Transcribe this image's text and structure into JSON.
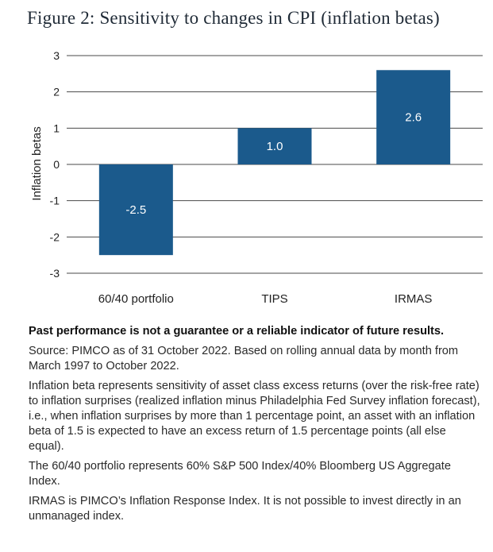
{
  "title": "Figure 2: Sensitivity to changes in CPI (inflation betas)",
  "chart_data": {
    "type": "bar",
    "categories": [
      "60/40 portfolio",
      "TIPS",
      "IRMAS"
    ],
    "values": [
      -2.5,
      1.0,
      2.6
    ],
    "value_labels": [
      "-2.5",
      "1.0",
      "2.6"
    ],
    "ylabel": "Inflation betas",
    "xlabel": "",
    "ylim": [
      -3,
      3
    ],
    "yticks": [
      3,
      2,
      1,
      0,
      -1,
      -2,
      -3
    ],
    "grid": true,
    "bar_color": "#1b5a8c"
  },
  "notes": {
    "disclaimer": "Past performance is not a guarantee or a reliable indicator of future results.",
    "source": "Source: PIMCO as of 31 October 2022. Based on rolling annual data by month from March 1997 to October 2022.",
    "definition": "Inflation beta represents sensitivity of asset class excess returns (over the risk-free rate) to inflation surprises (realized inflation minus Philadelphia Fed Survey inflation forecast), i.e., when inflation surprises by more than 1 percentage point, an asset with an inflation beta of 1.5 is expected to have an excess return of 1.5 percentage points (all else equal).",
    "portfolio": "The 60/40 portfolio represents 60% S&P 500 Index/40% Bloomberg US Aggregate Index.",
    "irmas": "IRMAS is PIMCO’s Inflation Response Index. It is not possible to invest directly in an unmanaged index."
  }
}
